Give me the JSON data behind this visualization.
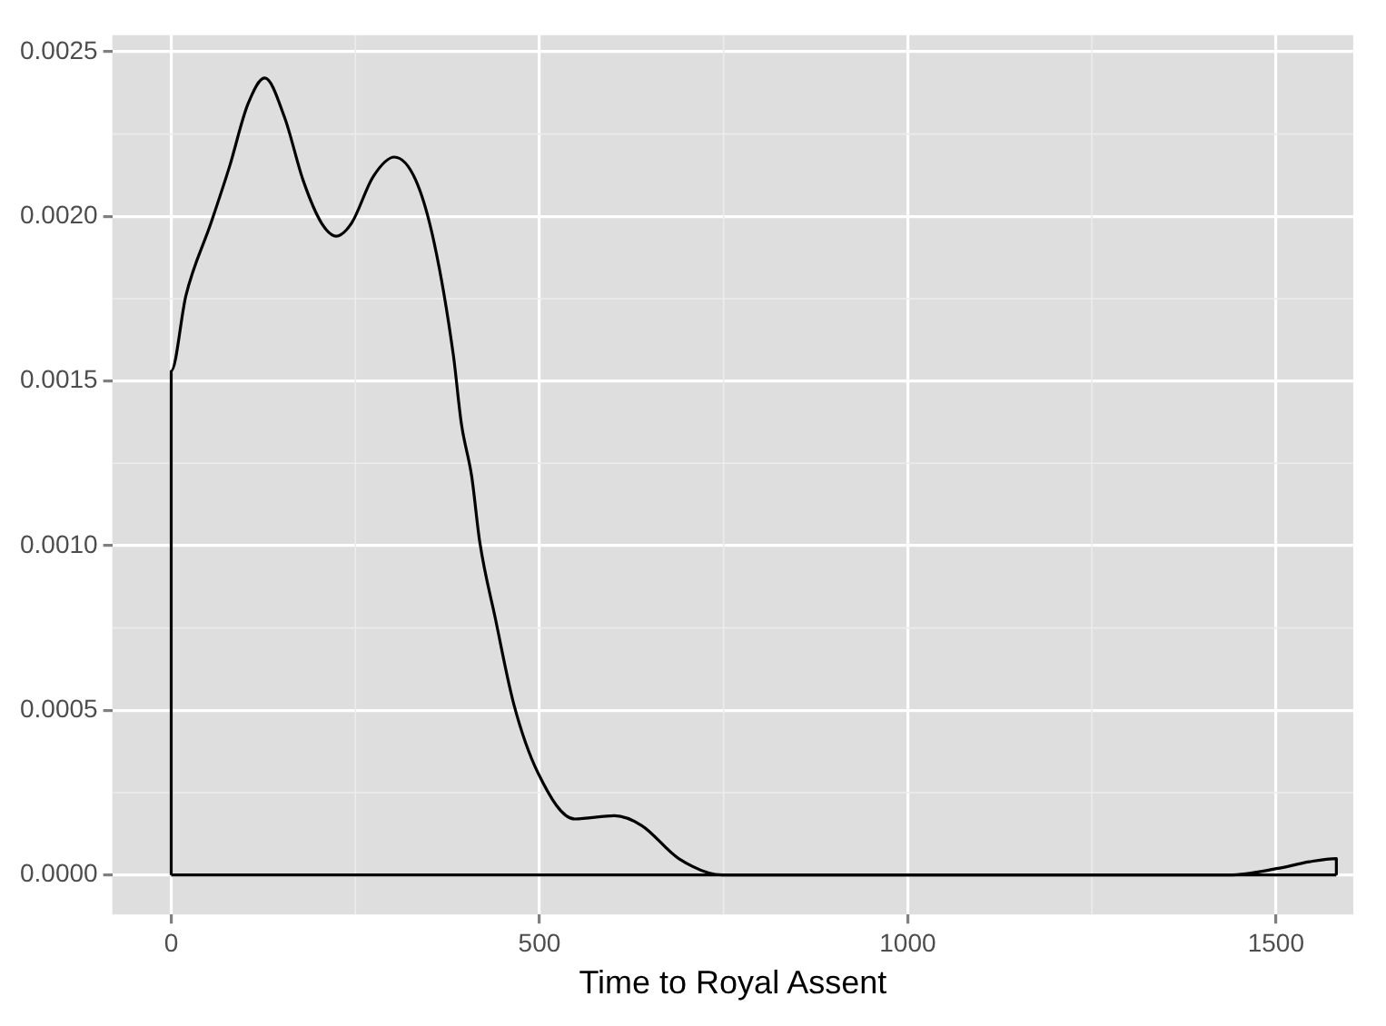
{
  "chart_data": {
    "type": "line",
    "xlabel": "Time to Royal Assent",
    "x": [
      0,
      0,
      20,
      54,
      79,
      104,
      127,
      154,
      179,
      204,
      224,
      245,
      274,
      303,
      332,
      357,
      383,
      394,
      408,
      419,
      440,
      465,
      498,
      548,
      602,
      639,
      689,
      748,
      1437,
      1503,
      1545,
      1582,
      1582
    ],
    "series": [
      {
        "color": "#000000",
        "values": [
          0,
          0.00153,
          0.00176,
          0.00198,
          0.00215,
          0.00234,
          0.00242,
          0.0023,
          0.00211,
          0.00198,
          0.00194,
          0.00198,
          0.00212,
          0.00218,
          0.00211,
          0.00192,
          0.00158,
          0.00137,
          0.00121,
          0.00101,
          0.00078,
          0.00052,
          0.00031,
          0.00017,
          0.00018,
          0.00015,
          5e-05,
          0,
          0,
          2e-05,
          4e-05,
          5e-05,
          0
        ]
      }
    ],
    "xlim": [
      -80,
      1605
    ],
    "xticks": [
      0,
      500,
      1000,
      1500
    ],
    "ylim": [
      -0.00012,
      0.00255
    ],
    "yticks": [
      {
        "value": 0,
        "label": "0.0000"
      },
      {
        "value": 0.0005,
        "label": "0.0005"
      },
      {
        "value": 0.001,
        "label": "0.0010"
      },
      {
        "value": 0.0015,
        "label": "0.0015"
      },
      {
        "value": 0.002,
        "label": "0.0020"
      },
      {
        "value": 0.0025,
        "label": "0.0025"
      }
    ],
    "grid": true,
    "legend": false,
    "marker": "none",
    "line_style": "solid"
  }
}
